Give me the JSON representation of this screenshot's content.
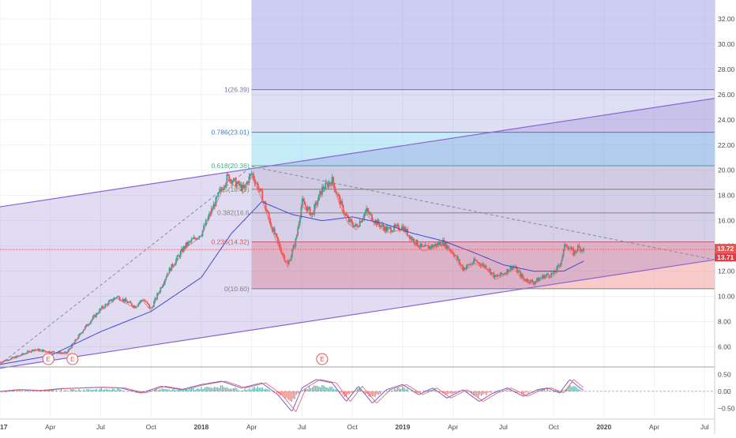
{
  "colors": {
    "background": "#ffffff",
    "grid": "#eef1f4",
    "channel_fill": "#7b5fc7",
    "channel_line": "#8a63d2",
    "fib_zone_top": "#6f6fe0",
    "fib_zone_upper": "#8a8ad8",
    "fib_zone_blue": "#7fd3ef",
    "fib_zone_mid": "#b8b8c0",
    "fib_zone_red": "#f08a8a",
    "candle_up": "#26a69a",
    "candle_down": "#ef5350",
    "ma_fast": "#f06a6a",
    "ma_slow": "#3d4bd0",
    "osc_line_a": "#7d5cc7",
    "osc_line_b": "#e05a6a",
    "price_badge_a": "#ef5350",
    "price_badge_b": "#e53946",
    "event_marker": "#e05a5a",
    "axis_text": "#4a4a4a"
  },
  "price_axis": {
    "ticks": [
      "32.00",
      "30.00",
      "28.00",
      "26.00",
      "24.00",
      "22.00",
      "20.00",
      "18.00",
      "16.00",
      "14.00",
      "12.00",
      "10.00",
      "8.00",
      "6.00"
    ]
  },
  "oscillator_axis": {
    "ticks": [
      "0.50",
      "0.00",
      "−0.50"
    ]
  },
  "time_axis": {
    "labels": [
      "2017",
      "Apr",
      "Jul",
      "Oct",
      "2018",
      "Apr",
      "Jul",
      "Oct",
      "2019",
      "Apr",
      "Jul",
      "Oct",
      "2020",
      "Apr",
      "Jul"
    ],
    "bold": [
      "2017",
      "2018",
      "2019",
      "2020"
    ]
  },
  "price_badges": [
    {
      "value": "13.72",
      "price": 13.72
    },
    {
      "value": "13.71",
      "price": 13.71
    }
  ],
  "fib_levels": [
    {
      "ratio": 1,
      "label": "1(26.39)",
      "price": 26.39
    },
    {
      "ratio": 0.786,
      "label": "0.786(23.01)",
      "price": 23.01
    },
    {
      "ratio": 0.618,
      "label": "0.618(20.36)",
      "price": 20.36
    },
    {
      "ratio": 0.5,
      "label": "0.5(18.49)",
      "price": 18.49
    },
    {
      "ratio": 0.382,
      "label": "0.382(16.6",
      "price": 16.62
    },
    {
      "ratio": 0.236,
      "label": "0.236(14.32)",
      "price": 14.32
    },
    {
      "ratio": 0,
      "label": "0(10.60)",
      "price": 10.6
    }
  ],
  "event_markers": [
    {
      "label": "E",
      "time": 2017.24
    },
    {
      "label": "E",
      "time": 2017.36
    },
    {
      "label": "E",
      "time": 2018.6
    }
  ],
  "chart_data": [
    {
      "type": "candlestick",
      "title": "",
      "xlabel": "",
      "ylabel": "",
      "x_range": [
        2017.0,
        2020.55
      ],
      "ylim": [
        4.4,
        33.5
      ],
      "grid": true,
      "channel": {
        "upper": [
          [
            2017.0,
            17.1
          ],
          [
            2020.55,
            25.7
          ]
        ],
        "lower": [
          [
            2017.0,
            4.3
          ],
          [
            2020.55,
            12.9
          ]
        ]
      },
      "trend_lines": [
        {
          "from": [
            2017.0,
            4.6
          ],
          "to": [
            2018.25,
            20.3
          ],
          "style": "dashed"
        },
        {
          "from": [
            2018.25,
            20.3
          ],
          "to": [
            2020.55,
            12.9
          ],
          "style": "dashed"
        }
      ],
      "close_series": {
        "t": [
          2017.0,
          2017.08,
          2017.17,
          2017.25,
          2017.33,
          2017.42,
          2017.5,
          2017.58,
          2017.67,
          2017.71,
          2017.75,
          2017.83,
          2017.92,
          2018.0,
          2018.05,
          2018.1,
          2018.13,
          2018.17,
          2018.21,
          2018.25,
          2018.3,
          2018.35,
          2018.4,
          2018.43,
          2018.47,
          2018.5,
          2018.55,
          2018.6,
          2018.65,
          2018.7,
          2018.73,
          2018.77,
          2018.82,
          2018.86,
          2018.92,
          2019.0,
          2019.05,
          2019.1,
          2019.15,
          2019.2,
          2019.25,
          2019.3,
          2019.36,
          2019.42,
          2019.46,
          2019.5,
          2019.55,
          2019.6,
          2019.65,
          2019.7,
          2019.75,
          2019.78,
          2019.81,
          2019.85,
          2019.87,
          2019.9
        ],
        "close": [
          4.8,
          5.2,
          5.8,
          5.6,
          5.5,
          7.5,
          9.0,
          10.0,
          9.2,
          9.8,
          9.0,
          11.8,
          14.0,
          15.0,
          16.8,
          18.5,
          19.5,
          19.0,
          18.5,
          19.8,
          18.0,
          15.5,
          13.5,
          12.5,
          14.5,
          17.5,
          16.5,
          18.5,
          19.2,
          17.0,
          16.0,
          15.5,
          16.8,
          16.0,
          15.3,
          15.5,
          14.5,
          13.8,
          14.0,
          14.3,
          13.5,
          12.2,
          12.8,
          12.3,
          11.5,
          11.8,
          12.4,
          11.4,
          11.1,
          11.6,
          11.8,
          12.5,
          14.2,
          13.4,
          13.9,
          13.7
        ]
      },
      "moving_averages": [
        {
          "t": [
            2017.0,
            2017.25,
            2017.5,
            2017.75,
            2018.0,
            2018.15,
            2018.3,
            2018.45,
            2018.6,
            2018.75,
            2018.9,
            2019.05,
            2019.2,
            2019.35,
            2019.5,
            2019.65,
            2019.8,
            2019.9
          ],
          "value": [
            4.6,
            5.3,
            7.2,
            8.8,
            11.5,
            15.0,
            17.5,
            16.5,
            16.0,
            16.3,
            15.8,
            15.0,
            14.4,
            13.5,
            12.5,
            12.0,
            12.0,
            12.8
          ]
        }
      ],
      "oscillator": {
        "ylim": [
          -0.75,
          0.65
        ],
        "t": [
          2017.0,
          2017.1,
          2017.2,
          2017.3,
          2017.4,
          2017.5,
          2017.6,
          2017.7,
          2017.8,
          2017.9,
          2018.0,
          2018.1,
          2018.2,
          2018.3,
          2018.38,
          2018.45,
          2018.5,
          2018.57,
          2018.65,
          2018.72,
          2018.78,
          2018.85,
          2018.92,
          2019.0,
          2019.08,
          2019.15,
          2019.22,
          2019.3,
          2019.38,
          2019.45,
          2019.52,
          2019.6,
          2019.67,
          2019.72,
          2019.78,
          2019.83,
          2019.87,
          2019.9
        ],
        "value": [
          0.0,
          0.05,
          0.02,
          0.08,
          0.1,
          0.12,
          0.1,
          -0.05,
          0.15,
          0.05,
          0.2,
          0.3,
          0.1,
          0.25,
          -0.1,
          -0.6,
          0.1,
          0.35,
          0.25,
          -0.3,
          0.15,
          -0.35,
          0.05,
          0.2,
          -0.1,
          0.1,
          -0.2,
          0.05,
          -0.3,
          -0.05,
          0.1,
          -0.15,
          0.05,
          0.1,
          -0.05,
          0.35,
          0.15,
          0.02
        ]
      }
    }
  ]
}
